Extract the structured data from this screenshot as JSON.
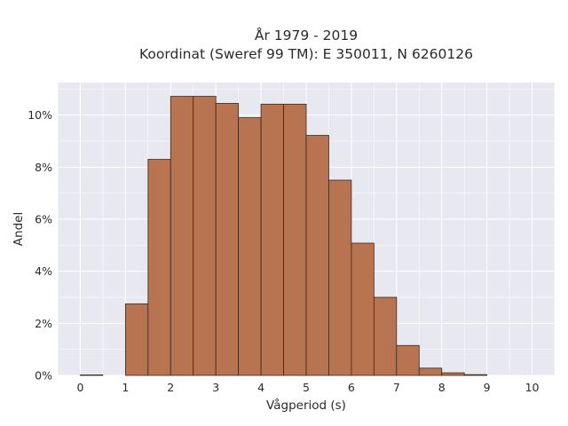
{
  "chart_data": {
    "type": "bar",
    "title_line1": "År 1979 - 2019",
    "title_line2": "Koordinat (Sweref 99 TM): E 350011, N 6260126",
    "xlabel": "Vågperiod (s)",
    "ylabel": "Andel",
    "bin_width": 0.5,
    "bins": [
      {
        "x_start": 0.0,
        "value": 0.02
      },
      {
        "x_start": 0.5,
        "value": 0.0
      },
      {
        "x_start": 1.0,
        "value": 2.75
      },
      {
        "x_start": 1.5,
        "value": 8.3
      },
      {
        "x_start": 2.0,
        "value": 10.72
      },
      {
        "x_start": 2.5,
        "value": 10.72
      },
      {
        "x_start": 3.0,
        "value": 10.45
      },
      {
        "x_start": 3.5,
        "value": 9.9
      },
      {
        "x_start": 4.0,
        "value": 10.42
      },
      {
        "x_start": 4.5,
        "value": 10.42
      },
      {
        "x_start": 5.0,
        "value": 9.22
      },
      {
        "x_start": 5.5,
        "value": 7.5
      },
      {
        "x_start": 6.0,
        "value": 5.08
      },
      {
        "x_start": 6.5,
        "value": 3.0
      },
      {
        "x_start": 7.0,
        "value": 1.15
      },
      {
        "x_start": 7.5,
        "value": 0.28
      },
      {
        "x_start": 8.0,
        "value": 0.1
      },
      {
        "x_start": 8.5,
        "value": 0.03
      }
    ],
    "x_ticks": [
      "0",
      "1",
      "2",
      "3",
      "4",
      "5",
      "6",
      "7",
      "8",
      "9",
      "10"
    ],
    "y_ticks": [
      {
        "value": 0,
        "label": "0%"
      },
      {
        "value": 2,
        "label": "2%"
      },
      {
        "value": 4,
        "label": "4%"
      },
      {
        "value": 6,
        "label": "6%"
      },
      {
        "value": 8,
        "label": "8%"
      },
      {
        "value": 10,
        "label": "10%"
      }
    ],
    "xlim": [
      -0.5,
      10.5
    ],
    "ylim": [
      0,
      11.25
    ],
    "grid": true,
    "colors": {
      "bar_fill": "#b87350",
      "bar_edge": "#3a2a20",
      "plot_background": "#e8e8f0",
      "grid": "#ffffff"
    }
  }
}
